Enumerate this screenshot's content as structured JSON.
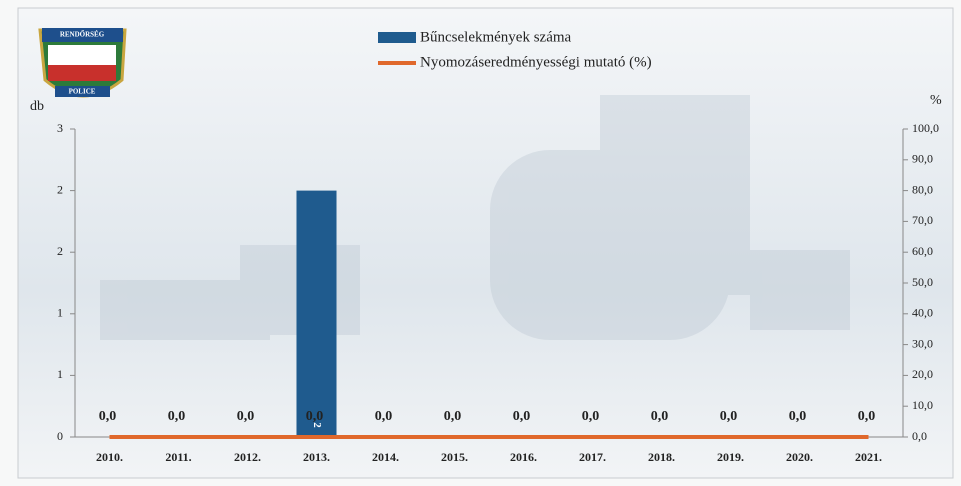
{
  "logo": {
    "top": "RENDŐRSÉG",
    "bottom": "POLICE"
  },
  "chart_data": {
    "type": "bar_line",
    "y_label": "db",
    "y2_label": "%",
    "categories": [
      "2010.",
      "2011.",
      "2012.",
      "2013.",
      "2014.",
      "2015.",
      "2016.",
      "2017.",
      "2018.",
      "2019.",
      "2020.",
      "2021."
    ],
    "series": [
      {
        "name": "Bűncselekmények száma",
        "type": "bar",
        "color": "#1f5b8e",
        "values": [
          0,
          0,
          0,
          2,
          0,
          0,
          0,
          0,
          0,
          0,
          0,
          0
        ]
      },
      {
        "name": "Nyomozáseredményességi mutató (%)",
        "type": "line",
        "axis": "y2",
        "color": "#e0682c",
        "values": [
          0,
          0,
          0,
          0,
          0,
          0,
          0,
          0,
          0,
          0,
          0,
          0
        ],
        "value_labels": [
          "0,0",
          "0,0",
          "0,0",
          "0,0",
          "0,0",
          "0,0",
          "0,0",
          "0,0",
          "0,0",
          "0,0",
          "0,0",
          "0,0"
        ]
      }
    ],
    "ylim": [
      0,
      2.5
    ],
    "yticks": [
      {
        "value": 0,
        "label": "0"
      },
      {
        "value": 0.5,
        "label": "1"
      },
      {
        "value": 1,
        "label": "1"
      },
      {
        "value": 1.5,
        "label": "2"
      },
      {
        "value": 2,
        "label": "2"
      },
      {
        "value": 2.5,
        "label": "3"
      }
    ],
    "y2lim": [
      0,
      100
    ],
    "y2ticks": [
      {
        "value": 0,
        "label": "0,0"
      },
      {
        "value": 10,
        "label": "10,0"
      },
      {
        "value": 20,
        "label": "20,0"
      },
      {
        "value": 30,
        "label": "30,0"
      },
      {
        "value": 40,
        "label": "40,0"
      },
      {
        "value": 50,
        "label": "50,0"
      },
      {
        "value": 60,
        "label": "60,0"
      },
      {
        "value": 70,
        "label": "70,0"
      },
      {
        "value": 80,
        "label": "80,0"
      },
      {
        "value": 90,
        "label": "90,0"
      },
      {
        "value": 100,
        "label": "100,0"
      }
    ],
    "legend": "top"
  }
}
